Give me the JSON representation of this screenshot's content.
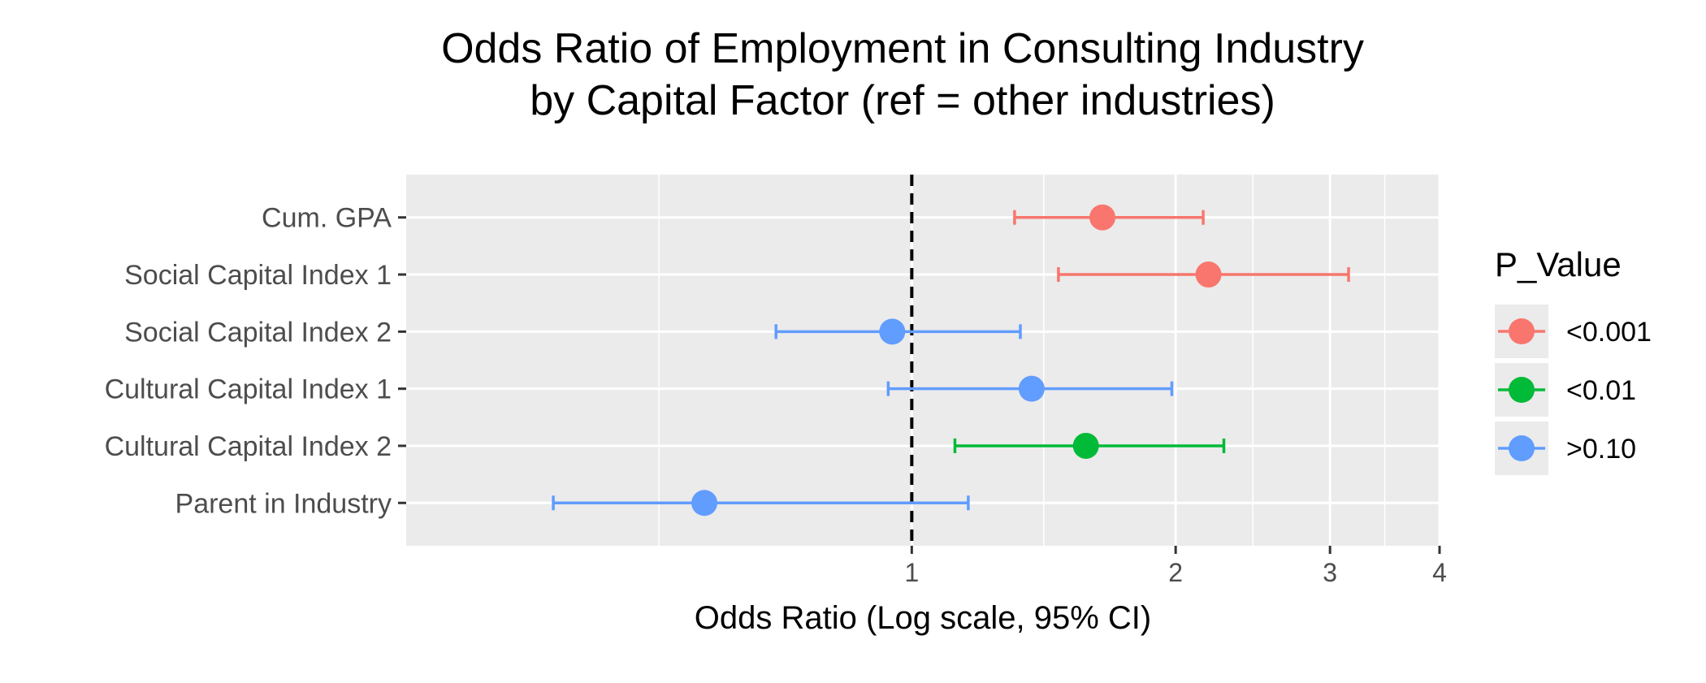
{
  "chart_data": {
    "type": "forest",
    "title_lines": [
      "Odds Ratio of Employment in Consulting Industry",
      "by Capital Factor (ref = other industries)"
    ],
    "xlabel": "Odds Ratio (Log scale, 95% CI)",
    "ylabel": "",
    "x_scale": "log",
    "xlim": [
      0.265,
      4.0
    ],
    "x_ticks": [
      1,
      2,
      3,
      4
    ],
    "x_tick_labels": [
      "1",
      "2",
      "3",
      "4"
    ],
    "reference_line": 1,
    "grid": true,
    "categories": [
      "Cum. GPA",
      "Social Capital Index 1",
      "Social Capital Index 2",
      "Cultural Capital Index 1",
      "Cultural Capital Index 2",
      "Parent in Industry"
    ],
    "points": [
      {
        "label": "Cum. GPA",
        "or": 1.65,
        "lo": 1.31,
        "hi": 2.15,
        "p": "<0.001"
      },
      {
        "label": "Social Capital Index 1",
        "or": 2.18,
        "lo": 1.47,
        "hi": 3.15,
        "p": "<0.001"
      },
      {
        "label": "Social Capital Index 2",
        "or": 0.95,
        "lo": 0.7,
        "hi": 1.33,
        "p": ">0.10"
      },
      {
        "label": "Cultural Capital Index 1",
        "or": 1.37,
        "lo": 0.94,
        "hi": 1.98,
        "p": ">0.10"
      },
      {
        "label": "Cultural Capital Index 2",
        "or": 1.58,
        "lo": 1.12,
        "hi": 2.27,
        "p": "<0.01"
      },
      {
        "label": "Parent in Industry",
        "or": 0.58,
        "lo": 0.39,
        "hi": 1.16,
        "p": ">0.10"
      }
    ],
    "legend": {
      "title": "P_Value",
      "position": "right",
      "entries": [
        {
          "label": "<0.001",
          "color": "#F8766D"
        },
        {
          "label": "<0.01",
          "color": "#00BA38"
        },
        {
          "label": ">0.10",
          "color": "#619CFF"
        }
      ]
    },
    "panel_color": "#EBEBEB",
    "grid_color": "#FFFFFF"
  }
}
